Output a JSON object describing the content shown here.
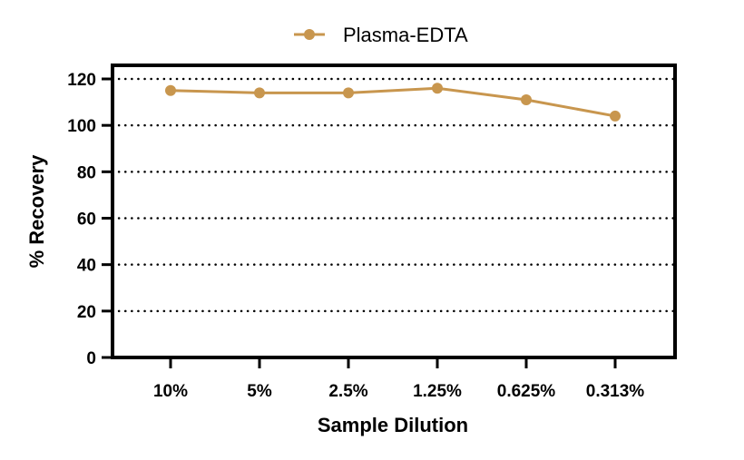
{
  "chart_data": {
    "type": "line",
    "categories": [
      "10%",
      "5%",
      "2.5%",
      "1.25%",
      "0.625%",
      "0.313%"
    ],
    "series": [
      {
        "name": "Plasma-EDTA",
        "values": [
          115,
          114,
          114,
          116,
          111,
          104
        ],
        "color": "#c8964e"
      }
    ],
    "xlabel": "Sample Dilution",
    "ylabel": "% Recovery",
    "ylim": [
      0,
      120
    ],
    "yticks": [
      0,
      20,
      40,
      60,
      80,
      100,
      120
    ],
    "grid": "horizontal dotted",
    "legend_position": "top-center"
  }
}
